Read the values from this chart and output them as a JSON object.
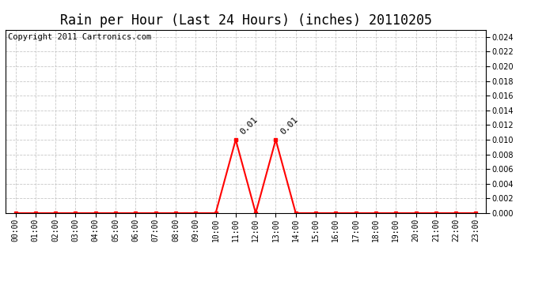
{
  "title": "Rain per Hour (Last 24 Hours) (inches) 20110205",
  "copyright_text": "Copyright 2011 Cartronics.com",
  "line_color": "#ff0000",
  "background_color": "#ffffff",
  "grid_color": "#c8c8c8",
  "ylim": [
    0,
    0.025
  ],
  "yticks": [
    0.0,
    0.002,
    0.004,
    0.006,
    0.008,
    0.01,
    0.012,
    0.014,
    0.016,
    0.018,
    0.02,
    0.022,
    0.024
  ],
  "hours": [
    0,
    1,
    2,
    3,
    4,
    5,
    6,
    7,
    8,
    9,
    10,
    11,
    12,
    13,
    14,
    15,
    16,
    17,
    18,
    19,
    20,
    21,
    22,
    23
  ],
  "values": [
    0,
    0,
    0,
    0,
    0,
    0,
    0,
    0,
    0,
    0,
    0,
    0.01,
    0,
    0.01,
    0,
    0,
    0,
    0,
    0,
    0,
    0,
    0,
    0,
    0
  ],
  "peak_hours": [
    11,
    13
  ],
  "peak_values": [
    0.01,
    0.01
  ],
  "peak_labels": [
    "0.01",
    "0.01"
  ],
  "marker_style": "s",
  "marker_size": 3,
  "line_width": 1.5,
  "title_fontsize": 12,
  "tick_fontsize": 7,
  "annotation_fontsize": 8,
  "copyright_fontsize": 7.5,
  "value_label_fontsize": 7
}
